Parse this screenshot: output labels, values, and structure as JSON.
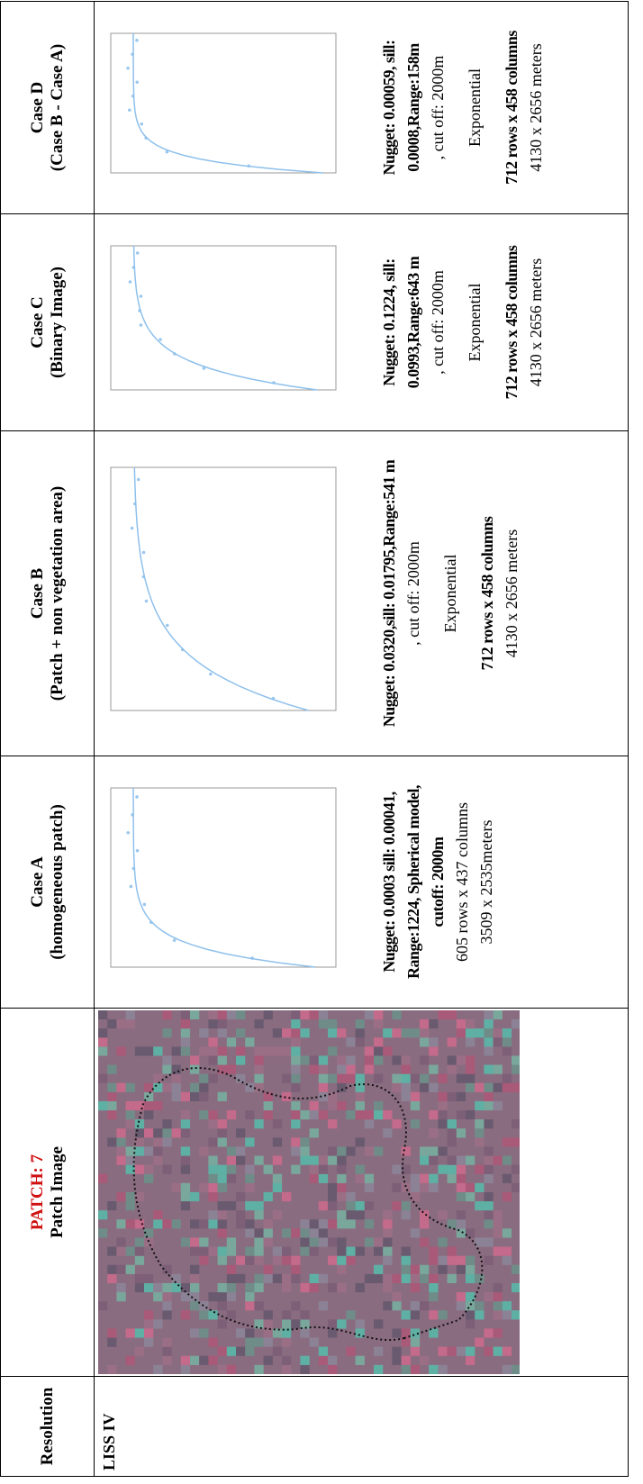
{
  "table": {
    "header": [
      {
        "lines": [
          "Resolution"
        ]
      },
      {
        "label": "PATCH: 7",
        "lines": [
          "Patch Image"
        ]
      },
      {
        "lines": [
          "Case A",
          "(homogeneous patch)"
        ]
      },
      {
        "lines": [
          "Case B",
          "(Patch + non vegetation area)"
        ]
      },
      {
        "lines": [
          "Case C",
          "(Binary Image)"
        ]
      },
      {
        "lines": [
          "Case D",
          "(Case B - Case A)"
        ]
      }
    ],
    "resolution": "LISS IV",
    "cases": [
      {
        "parameters": "Nugget: 0.0003 sill: 0.00041, Range:1224, Spherical model, cutoff: 2000m",
        "size": "605 rows x  437 columns",
        "extent": "3509 x 2535meters"
      },
      {
        "parameters": "Nugget: 0.0320,sill: 0.01795,Range:541 m",
        "cutoff": ", cut off: 2000m",
        "model": "Exponential",
        "size": "712 rows x  458 columns",
        "extent": "4130 x 2656 meters"
      },
      {
        "parameters": "Nugget: 0.1224, sill: 0.0993,Range:643 m",
        "cutoff": ", cut off: 2000m",
        "model": "Exponential",
        "size": "712 rows x  458 columns",
        "extent": "4130 x 2656 meters"
      },
      {
        "parameters": "Nugget:  0.00059, sill: 0.0008,Range:158m",
        "cutoff": ", cut off: 2000m",
        "model": "Exponential",
        "size": "712 rows x  458 columns",
        "extent": "4130 x 2656 meters"
      }
    ]
  }
}
